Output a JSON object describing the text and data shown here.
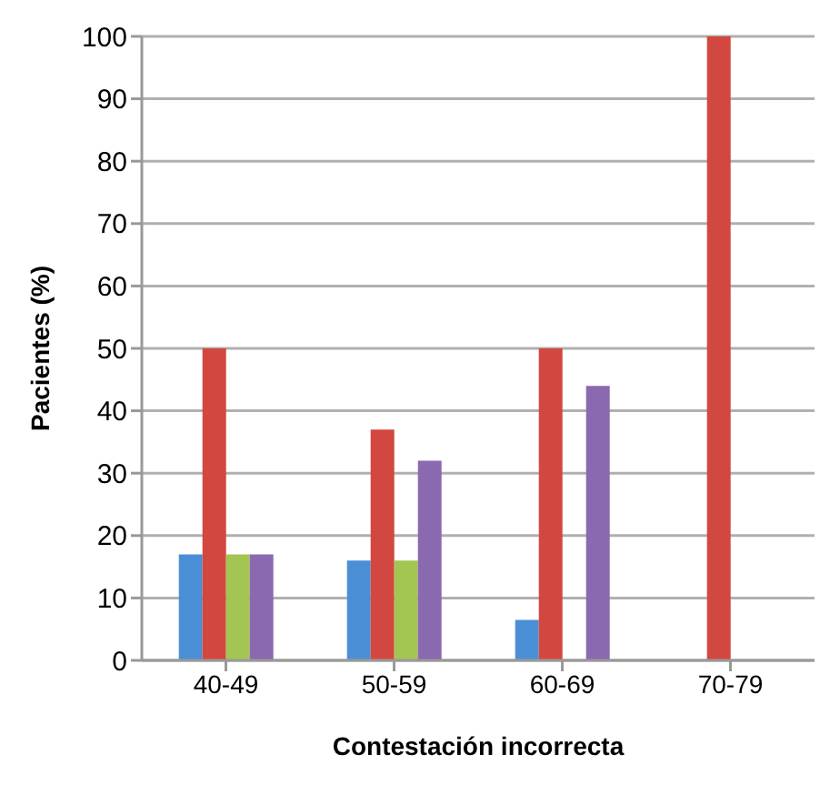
{
  "chart_data": {
    "type": "bar",
    "xlabel": "Contestación incorrecta",
    "ylabel": "Pacientes (%)",
    "categories": [
      "40-49",
      "50-59",
      "60-69",
      "70-79"
    ],
    "series": [
      {
        "color": "#4a8fd6",
        "values": [
          17,
          16,
          6.5,
          0
        ]
      },
      {
        "color": "#d2473f",
        "values": [
          50,
          37,
          50,
          100
        ]
      },
      {
        "color": "#a3c552",
        "values": [
          17,
          16,
          0,
          0
        ]
      },
      {
        "color": "#8a69b0",
        "values": [
          17,
          32,
          44,
          0
        ]
      }
    ],
    "ylim": [
      0,
      100
    ],
    "yticks": [
      0,
      10,
      20,
      30,
      40,
      50,
      60,
      70,
      80,
      90,
      100
    ],
    "grid": "y",
    "legend": false
  }
}
